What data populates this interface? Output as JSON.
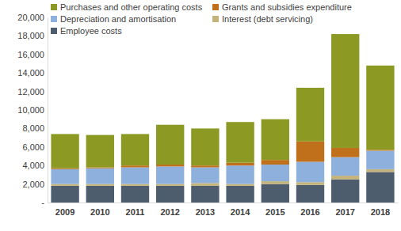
{
  "chart_data": {
    "type": "bar",
    "stacked": true,
    "grid": false,
    "legend": "top",
    "categories": [
      "2009",
      "2010",
      "2011",
      "2012",
      "2013",
      "2014",
      "2015",
      "2016",
      "2017",
      "2018"
    ],
    "series": [
      {
        "name": "Employee costs",
        "color": "#4d5d6e",
        "values": [
          1800,
          1800,
          1800,
          1800,
          1800,
          1800,
          2000,
          1900,
          2500,
          3300
        ]
      },
      {
        "name": "Interest (debt servicing)",
        "color": "#c4b47c",
        "values": [
          200,
          200,
          200,
          200,
          300,
          200,
          300,
          300,
          400,
          300
        ]
      },
      {
        "name": "Depreciation and amortisation",
        "color": "#8eb0dc",
        "values": [
          1600,
          1700,
          1800,
          1900,
          1700,
          2000,
          1800,
          2200,
          2000,
          2000
        ]
      },
      {
        "name": "Grants and subsidies expenditure",
        "color": "#c0701a",
        "values": [
          100,
          100,
          200,
          200,
          200,
          300,
          500,
          2200,
          1000,
          100
        ]
      },
      {
        "name": "Purchases and other operating costs",
        "color": "#8c9a24",
        "values": [
          3700,
          3500,
          3400,
          4300,
          4000,
          4400,
          4400,
          5800,
          12300,
          9100
        ]
      }
    ],
    "ylim": [
      0,
      20000
    ],
    "yticks": [
      {
        "value": 0,
        "label": "-"
      },
      {
        "value": 2000,
        "label": "2,000"
      },
      {
        "value": 4000,
        "label": "4,000"
      },
      {
        "value": 6000,
        "label": "6,000"
      },
      {
        "value": 8000,
        "label": "8,000"
      },
      {
        "value": 10000,
        "label": "10,000"
      },
      {
        "value": 12000,
        "label": "12,000"
      },
      {
        "value": 14000,
        "label": "14,000"
      },
      {
        "value": 16000,
        "label": "16,000"
      },
      {
        "value": 18000,
        "label": "18,000"
      },
      {
        "value": 20000,
        "label": "20,000"
      }
    ]
  }
}
